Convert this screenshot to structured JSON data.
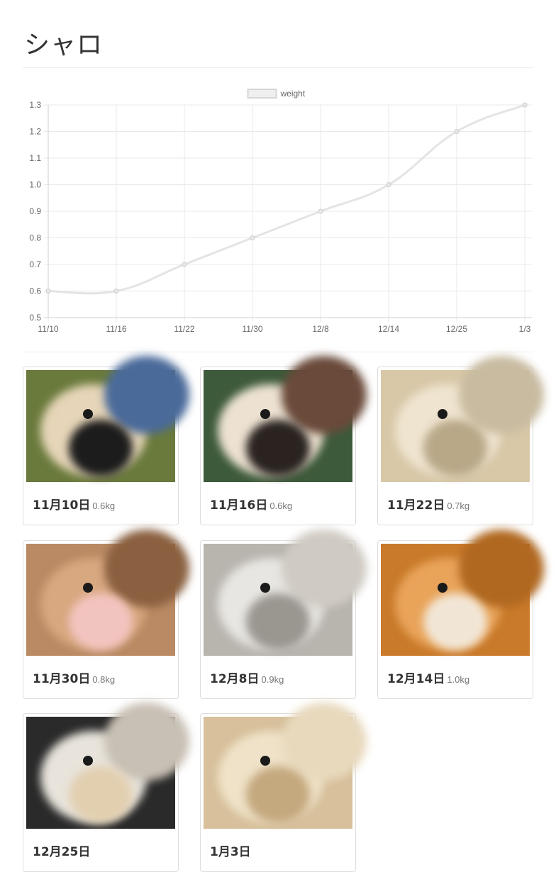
{
  "page": {
    "title": "シャロ"
  },
  "chart_data": {
    "type": "line",
    "legend": [
      "weight"
    ],
    "legend_position": "top",
    "categories": [
      "11/10",
      "11/16",
      "11/22",
      "11/30",
      "12/8",
      "12/14",
      "12/25",
      "1/3"
    ],
    "series": [
      {
        "name": "weight",
        "values": [
          0.6,
          0.6,
          0.7,
          0.8,
          0.9,
          1.0,
          1.2,
          1.3
        ]
      }
    ],
    "y_ticks": [
      "0.5",
      "0.6",
      "0.7",
      "0.8",
      "0.9",
      "1.0",
      "1.1",
      "1.2",
      "1.3"
    ],
    "ylim": [
      0.5,
      1.3
    ],
    "grid": true,
    "line_color": "#e4e4e4",
    "point_color": "#cccccc"
  },
  "gallery": [
    {
      "date": "11月10日",
      "weight": "0.6kg",
      "palette": [
        "#6a7a3c",
        "#e6d5b8",
        "#1c1c1c",
        "#4a6a9a"
      ]
    },
    {
      "date": "11月16日",
      "weight": "0.6kg",
      "palette": [
        "#3d5a3a",
        "#ede2d2",
        "#2a2320",
        "#6a4a3a"
      ]
    },
    {
      "date": "11月22日",
      "weight": "0.7kg",
      "palette": [
        "#d8c8a8",
        "#efe4cf",
        "#b8a888",
        "#c8bba0"
      ]
    },
    {
      "date": "11月30日",
      "weight": "0.8kg",
      "palette": [
        "#b98a63",
        "#d8a880",
        "#f2c4c0",
        "#8a6040"
      ]
    },
    {
      "date": "12月8日",
      "weight": "0.9kg",
      "palette": [
        "#b8b4ae",
        "#e8e6e2",
        "#9a9690",
        "#cfcac2"
      ]
    },
    {
      "date": "12月14日",
      "weight": "1.0kg",
      "palette": [
        "#c97a2a",
        "#e9a45a",
        "#f1e6d6",
        "#b06820"
      ]
    },
    {
      "date": "12月25日",
      "weight": "",
      "palette": [
        "#2a2a2a",
        "#e8e4dc",
        "#e2cfb0",
        "#c8c0b4"
      ]
    },
    {
      "date": "1月3日",
      "weight": "",
      "palette": [
        "#d7c09b",
        "#efe2c8",
        "#c4a87e",
        "#e8d9bd"
      ]
    }
  ]
}
